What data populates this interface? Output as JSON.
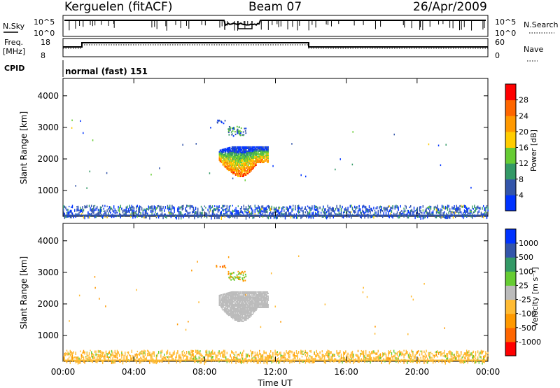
{
  "header": {
    "station": "Kerguelen (fitACF)",
    "beam": "Beam 07",
    "date": "26/Apr/2009"
  },
  "panels": {
    "nsky": {
      "label": "N.Sky",
      "ticks_left": [
        "10^5",
        "10^0"
      ],
      "right_label": "N.Search",
      "ticks_right": [
        "10^5",
        "10^0"
      ]
    },
    "freq": {
      "label_line1": "Freq.",
      "label_line2": "[MHz]",
      "ticks_left": [
        "18",
        "8"
      ],
      "right_label": "Nave",
      "ticks_right": [
        "60",
        "0"
      ]
    },
    "cpid": {
      "label": "CPID",
      "text": "normal (fast) 151"
    }
  },
  "colors": {
    "power": [
      "#0033ff",
      "#3355aa",
      "#339966",
      "#66cc33",
      "#ffcc00",
      "#ff9900",
      "#ff6600",
      "#ff0000"
    ],
    "velocity": [
      "#ff0000",
      "#ff6600",
      "#ff9900",
      "#ffbb33",
      "#bbbbbb",
      "#66cc33",
      "#339966",
      "#3355aa",
      "#0033ff"
    ],
    "ground_scatter": "#bbbbbb"
  },
  "chart_data": [
    {
      "type": "heatmap",
      "title": "",
      "xlabel": "Time UT",
      "ylabel": "Slant Range [km]",
      "x_ticks": [
        "00:00",
        "04:00",
        "08:00",
        "12:00",
        "16:00",
        "20:00",
        "00:00"
      ],
      "y_ticks": [
        "1000",
        "2000",
        "3000",
        "4000"
      ],
      "xlim_hours": [
        0,
        24
      ],
      "ylim_km": [
        180,
        4550
      ],
      "colorbar": {
        "label": "Power [dB]",
        "tick_labels": [
          "4",
          "8",
          "12",
          "16",
          "20",
          "24",
          "28"
        ],
        "range": [
          0,
          32
        ]
      },
      "features": [
        {
          "desc": "main echo cluster",
          "t_start_hours": 8.8,
          "t_end_hours": 11.6,
          "range_km": [
            1450,
            2400
          ],
          "power_db": [
            2,
            30
          ]
        },
        {
          "desc": "upper patch",
          "t_start_hours": 8.6,
          "t_end_hours": 9.2,
          "range_km": [
            3150,
            3250
          ],
          "power_db": [
            2,
            6
          ]
        },
        {
          "desc": "middle patch",
          "t_start_hours": 9.3,
          "t_end_hours": 10.3,
          "range_km": [
            2750,
            3050
          ],
          "power_db": [
            4,
            14
          ]
        },
        {
          "desc": "near-range band",
          "t_start_hours": 0,
          "t_end_hours": 24,
          "range_km": [
            180,
            550
          ],
          "power_db": [
            2,
            20
          ]
        }
      ]
    },
    {
      "type": "heatmap",
      "title": "",
      "xlabel": "Time UT",
      "ylabel": "Slant Range [km]",
      "x_ticks": [
        "00:00",
        "04:00",
        "08:00",
        "12:00",
        "16:00",
        "20:00",
        "00:00"
      ],
      "y_ticks": [
        "1000",
        "2000",
        "3000",
        "4000"
      ],
      "xlim_hours": [
        0,
        24
      ],
      "ylim_km": [
        180,
        4550
      ],
      "colorbar": {
        "label": "Velocity [m s⁻¹]",
        "tick_labels": [
          "1000",
          "500",
          "100",
          "25",
          "-25",
          "-100",
          "-500",
          "-1000"
        ]
      },
      "features": [
        {
          "desc": "main echo cluster (ground scatter)",
          "t_start_hours": 8.8,
          "t_end_hours": 11.6,
          "range_km": [
            1450,
            2400
          ],
          "velocity_ms": [
            -25,
            25
          ]
        },
        {
          "desc": "upper patch",
          "t_start_hours": 8.6,
          "t_end_hours": 9.2,
          "range_km": [
            3150,
            3250
          ],
          "velocity_ms": [
            -500,
            -100
          ]
        },
        {
          "desc": "middle patch",
          "t_start_hours": 9.3,
          "t_end_hours": 10.3,
          "range_km": [
            2750,
            3050
          ],
          "velocity_ms": [
            -100,
            100
          ]
        },
        {
          "desc": "near-range band",
          "t_start_hours": 0,
          "t_end_hours": 24,
          "range_km": [
            180,
            550
          ],
          "velocity_ms": [
            -100,
            100
          ]
        }
      ]
    }
  ]
}
